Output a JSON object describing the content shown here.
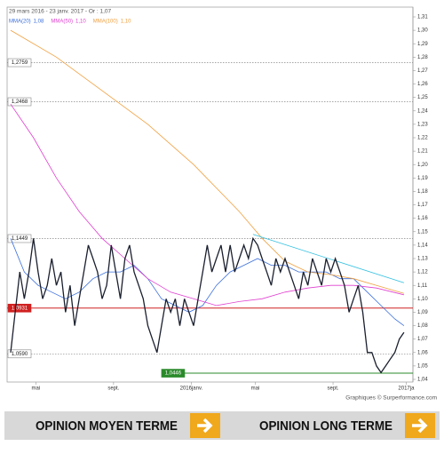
{
  "chart_data": {
    "type": "line",
    "header": "29 mars 2016 - 23 janv. 2017 - Or : 1,07",
    "footer": "Graphiques © Surperformance.com",
    "buttons": [
      "OPINION MOYEN TERME",
      "OPINION LONG TERME"
    ],
    "xlim": [
      0,
      87
    ],
    "xticks": [
      {
        "value": 5.5,
        "label": "mai"
      },
      {
        "value": 22.5,
        "label": "sept."
      },
      {
        "value": 39.5,
        "label": "2016janv."
      },
      {
        "value": 53.5,
        "label": "mai"
      },
      {
        "value": 70.5,
        "label": "sept."
      },
      {
        "value": 86.5,
        "label": "2017ja"
      }
    ],
    "ylim": [
      1.04,
      1.31
    ],
    "yticks": [
      {
        "value": 1.04,
        "label": "1,04"
      },
      {
        "value": 1.05,
        "label": "1,05"
      },
      {
        "value": 1.06,
        "label": "1,06"
      },
      {
        "value": 1.07,
        "label": "1,07"
      },
      {
        "value": 1.08,
        "label": "1,08"
      },
      {
        "value": 1.09,
        "label": "1,09"
      },
      {
        "value": 1.1,
        "label": "1,10"
      },
      {
        "value": 1.11,
        "label": "1,11"
      },
      {
        "value": 1.12,
        "label": "1,12"
      },
      {
        "value": 1.13,
        "label": "1,13"
      },
      {
        "value": 1.14,
        "label": "1,14"
      },
      {
        "value": 1.15,
        "label": "1,15"
      },
      {
        "value": 1.16,
        "label": "1,16"
      },
      {
        "value": 1.17,
        "label": "1,17"
      },
      {
        "value": 1.18,
        "label": "1,18"
      },
      {
        "value": 1.19,
        "label": "1,19"
      },
      {
        "value": 1.2,
        "label": "1,20"
      },
      {
        "value": 1.21,
        "label": "1,21"
      },
      {
        "value": 1.22,
        "label": "1,22"
      },
      {
        "value": 1.23,
        "label": "1,23"
      },
      {
        "value": 1.24,
        "label": "1,24"
      },
      {
        "value": 1.25,
        "label": "1,25"
      },
      {
        "value": 1.26,
        "label": "1,26"
      },
      {
        "value": 1.27,
        "label": "1,27"
      },
      {
        "value": 1.28,
        "label": "1,28"
      },
      {
        "value": 1.29,
        "label": "1,29"
      },
      {
        "value": 1.3,
        "label": "1,30"
      },
      {
        "value": 1.31,
        "label": "1,31"
      }
    ],
    "price": {
      "color": "#1a1f2e",
      "values": [
        1.06,
        1.09,
        1.12,
        1.1,
        1.12,
        1.145,
        1.12,
        1.1,
        1.11,
        1.13,
        1.11,
        1.12,
        1.09,
        1.11,
        1.08,
        1.1,
        1.12,
        1.14,
        1.13,
        1.12,
        1.1,
        1.11,
        1.14,
        1.12,
        1.1,
        1.13,
        1.14,
        1.12,
        1.11,
        1.1,
        1.08,
        1.07,
        1.06,
        1.08,
        1.1,
        1.09,
        1.1,
        1.08,
        1.1,
        1.09,
        1.08,
        1.1,
        1.12,
        1.14,
        1.12,
        1.13,
        1.14,
        1.12,
        1.14,
        1.12,
        1.13,
        1.14,
        1.13,
        1.145,
        1.14,
        1.13,
        1.12,
        1.11,
        1.13,
        1.12,
        1.13,
        1.12,
        1.11,
        1.1,
        1.12,
        1.11,
        1.13,
        1.12,
        1.11,
        1.13,
        1.12,
        1.13,
        1.12,
        1.11,
        1.09,
        1.1,
        1.11,
        1.09,
        1.06,
        1.06,
        1.05,
        1.045,
        1.05,
        1.055,
        1.06,
        1.07,
        1.075
      ]
    },
    "series": [
      {
        "name": "MMA(20)",
        "last": "1,08",
        "color": "#3b6fdc",
        "x": [
          0,
          3,
          6,
          9,
          12,
          15,
          18,
          21,
          24,
          27,
          30,
          33,
          36,
          39,
          42,
          45,
          48,
          51,
          54,
          57,
          60,
          63,
          66,
          69,
          72,
          75,
          78,
          81,
          84,
          86
        ],
        "values": [
          1.145,
          1.12,
          1.11,
          1.105,
          1.1,
          1.105,
          1.115,
          1.12,
          1.12,
          1.125,
          1.115,
          1.1,
          1.095,
          1.09,
          1.095,
          1.11,
          1.12,
          1.125,
          1.13,
          1.125,
          1.125,
          1.12,
          1.12,
          1.12,
          1.115,
          1.115,
          1.105,
          1.095,
          1.085,
          1.08
        ]
      },
      {
        "name": "MMA(50)",
        "last": "1,10",
        "color": "#e040d0",
        "x": [
          0,
          5,
          10,
          15,
          20,
          25,
          30,
          35,
          40,
          45,
          50,
          55,
          60,
          65,
          70,
          75,
          80,
          86
        ],
        "values": [
          1.245,
          1.22,
          1.19,
          1.165,
          1.145,
          1.13,
          1.115,
          1.105,
          1.1,
          1.095,
          1.098,
          1.1,
          1.105,
          1.108,
          1.11,
          1.11,
          1.108,
          1.103
        ]
      },
      {
        "name": "MMA(100)",
        "last": "1,10",
        "color": "#f0a040",
        "x": [
          0,
          10,
          20,
          30,
          40,
          50,
          55,
          60,
          65,
          70,
          75,
          80,
          86
        ],
        "values": [
          1.3,
          1.28,
          1.255,
          1.23,
          1.2,
          1.165,
          1.145,
          1.128,
          1.12,
          1.118,
          1.115,
          1.11,
          1.104
        ]
      }
    ],
    "trendline": {
      "color": "#30c0e0",
      "x": [
        53,
        86
      ],
      "values": [
        1.148,
        1.112
      ]
    },
    "levels": [
      {
        "value": 1.2759,
        "label": "1,2759",
        "color": "#888",
        "style": "dashed"
      },
      {
        "value": 1.2468,
        "label": "1,2468",
        "color": "#888",
        "style": "dashed"
      },
      {
        "value": 1.1449,
        "label": "1,1449",
        "color": "#888",
        "style": "dashed"
      },
      {
        "value": 1.0931,
        "label": "1,0931",
        "color": "#d02020",
        "style": "solid"
      },
      {
        "value": 1.059,
        "label": "1,0590",
        "color": "#888",
        "style": "dashed"
      },
      {
        "value": 1.0446,
        "label": "1,0446",
        "color": "#2a8a2a",
        "style": "solid",
        "start": 33
      }
    ]
  }
}
